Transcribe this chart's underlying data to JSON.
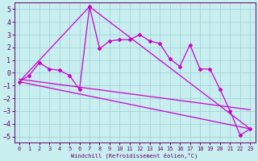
{
  "xlabel": "Windchill (Refroidissement éolien,°C)",
  "background_color": "#c8eef0",
  "grid_color": "#9ecece",
  "line_color": "#cc00cc",
  "spine_color": "#660066",
  "xlim": [
    -0.5,
    23.5
  ],
  "ylim": [
    -5.5,
    5.5
  ],
  "yticks": [
    -5,
    -4,
    -3,
    -2,
    -1,
    0,
    1,
    2,
    3,
    4,
    5
  ],
  "xticks": [
    0,
    1,
    2,
    3,
    4,
    5,
    6,
    7,
    8,
    9,
    10,
    11,
    12,
    13,
    14,
    15,
    16,
    17,
    18,
    19,
    20,
    21,
    22,
    23
  ],
  "series1_x": [
    0,
    1,
    2,
    3,
    4,
    5,
    6,
    7,
    8,
    9,
    10,
    11,
    12,
    13,
    14,
    15,
    16,
    17,
    18,
    19,
    20,
    21,
    22,
    23
  ],
  "series1_y": [
    -0.7,
    -0.2,
    0.8,
    0.3,
    0.2,
    -0.2,
    -1.3,
    5.2,
    1.9,
    2.5,
    2.6,
    2.6,
    3.0,
    2.5,
    2.3,
    1.1,
    0.5,
    2.2,
    0.3,
    0.3,
    -1.3,
    -3.0,
    -4.9,
    -4.4
  ],
  "line2_x": [
    0,
    7,
    23
  ],
  "line2_y": [
    -0.7,
    5.2,
    -4.4
  ],
  "line3_x": [
    0,
    23
  ],
  "line3_y": [
    -0.7,
    -4.4
  ],
  "line4_x": [
    0,
    23
  ],
  "line4_y": [
    -0.5,
    -2.9
  ],
  "tick_fontsize": 5,
  "xlabel_fontsize": 5
}
